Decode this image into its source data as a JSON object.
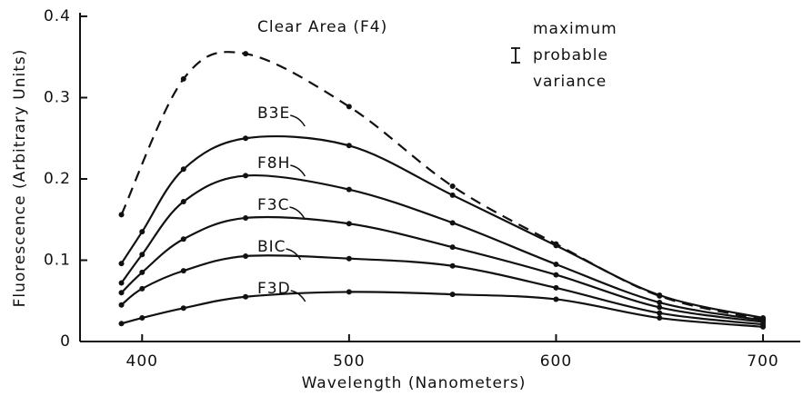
{
  "chart_data": {
    "type": "line",
    "x": [
      390,
      400,
      420,
      450,
      500,
      550,
      600,
      650,
      700
    ],
    "xlim": [
      370,
      718
    ],
    "xticks": [
      400,
      500,
      600,
      700
    ],
    "ylim": [
      0,
      0.4
    ],
    "yticks": [
      0,
      0.1,
      0.2,
      0.3,
      0.4
    ],
    "xlabel": "Wavelength (Nanometers)",
    "ylabel": "Fluorescence (Arbitrary Units)",
    "annotation": [
      "maximum",
      "probable",
      "variance"
    ],
    "series": [
      {
        "name": "Clear Area (F4)",
        "color": "#111111",
        "style": "dashed",
        "x": [
          390,
          420,
          450,
          500,
          550,
          600,
          650,
          700
        ],
        "values": [
          0.156,
          0.323,
          0.354,
          0.289,
          0.191,
          0.12,
          0.056,
          0.027
        ]
      },
      {
        "name": "B3E",
        "color": "#111111",
        "style": "solid",
        "values": [
          0.096,
          0.135,
          0.212,
          0.25,
          0.241,
          0.18,
          0.118,
          0.057,
          0.029
        ]
      },
      {
        "name": "F8H",
        "color": "#111111",
        "style": "solid",
        "values": [
          0.072,
          0.107,
          0.172,
          0.204,
          0.187,
          0.146,
          0.095,
          0.048,
          0.026
        ]
      },
      {
        "name": "F3C",
        "color": "#111111",
        "style": "solid",
        "values": [
          0.06,
          0.085,
          0.126,
          0.152,
          0.145,
          0.116,
          0.082,
          0.042,
          0.024
        ]
      },
      {
        "name": "BIC",
        "color": "#111111",
        "style": "solid",
        "values": [
          0.045,
          0.065,
          0.087,
          0.105,
          0.102,
          0.093,
          0.066,
          0.035,
          0.021
        ]
      },
      {
        "name": "F3D",
        "color": "#111111",
        "style": "solid",
        "values": [
          0.022,
          0.029,
          0.041,
          0.055,
          0.061,
          0.058,
          0.052,
          0.029,
          0.018
        ]
      }
    ]
  }
}
